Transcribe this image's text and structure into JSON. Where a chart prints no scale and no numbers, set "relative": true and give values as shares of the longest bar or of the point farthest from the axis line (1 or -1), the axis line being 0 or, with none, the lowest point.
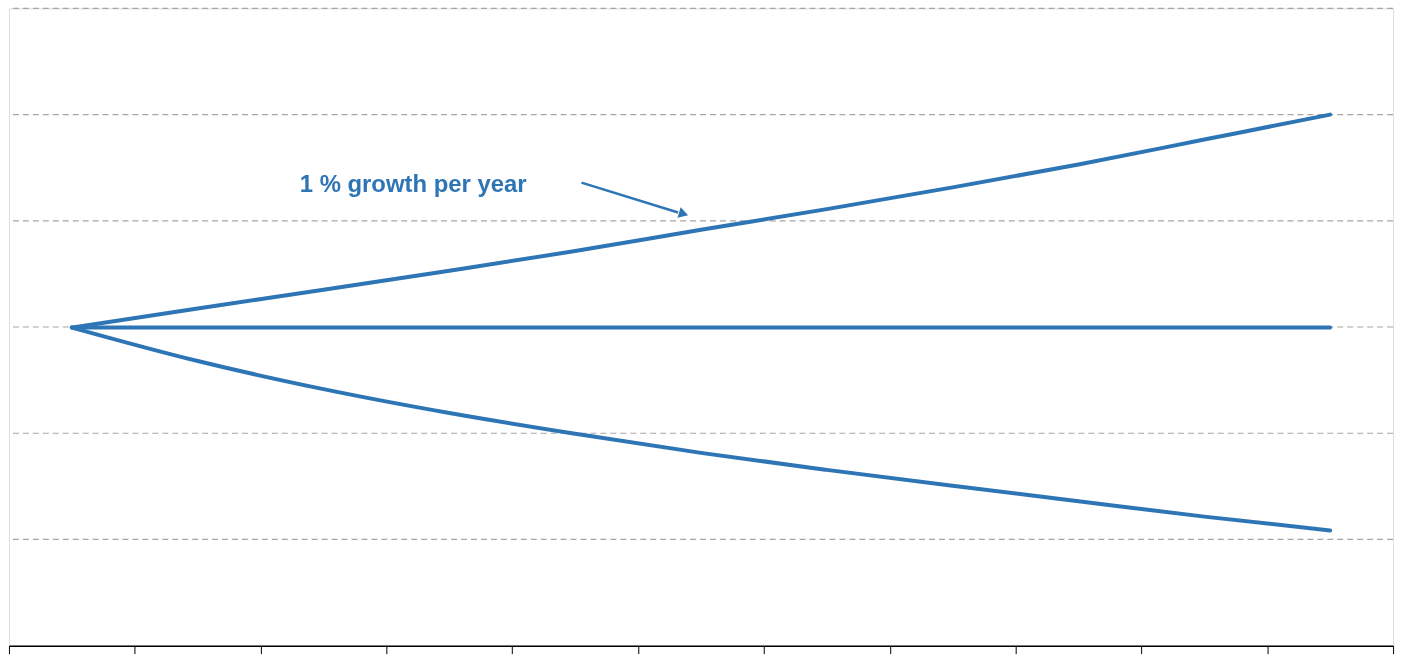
{
  "chart_data": {
    "type": "line",
    "relative": true,
    "categories": [
      null,
      null,
      null,
      null,
      null,
      null,
      null,
      null,
      null,
      null,
      null
    ],
    "series": [
      {
        "color": "#2e75b6",
        "values": [
          0.599,
          0.635,
          0.67,
          0.706,
          0.743,
          0.783,
          0.822,
          0.863,
          0.906,
          0.953,
          1
        ]
      },
      {
        "color": "#2e75b6",
        "values": [
          0.599,
          0.599,
          0.599,
          0.599,
          0.599,
          0.599,
          0.599,
          0.599,
          0.599,
          0.599,
          0.599
        ]
      },
      {
        "color": "#2e75b6",
        "values": [
          0.599,
          0.536,
          0.483,
          0.438,
          0.399,
          0.363,
          0.331,
          0.301,
          0.272,
          0.243,
          0.217
        ]
      }
    ],
    "annotations": [
      "1 % growth per year"
    ],
    "ref_lines": [
      {
        "axis": "y",
        "value": 0.2,
        "color": "#a6a6a6",
        "line_style": "dashed"
      },
      {
        "axis": "y",
        "value": 0.4,
        "color": "#a6a6a6",
        "line_style": "dashed"
      },
      {
        "axis": "y",
        "value": 0.6,
        "color": "#a6a6a6",
        "line_style": "dashed"
      },
      {
        "axis": "y",
        "value": 0.8,
        "color": "#a6a6a6",
        "line_style": "dashed"
      },
      {
        "axis": "y",
        "value": 1.0,
        "color": "#a6a6a6",
        "line_style": "dashed"
      },
      {
        "axis": "y",
        "value": 1.2,
        "color": "#a6a6a6",
        "line_style": "dashed"
      }
    ],
    "grid": false,
    "marker": "none",
    "line_style": "solid"
  }
}
